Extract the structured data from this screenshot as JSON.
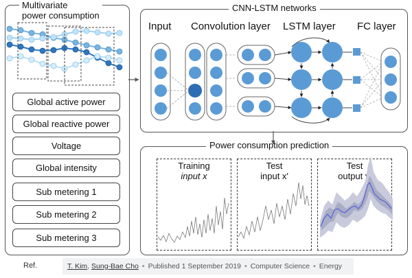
{
  "left_panel": {
    "title_line1": "Multivariate",
    "title_line2": "power consumption",
    "features": [
      "Global active power",
      "Global reactive power",
      "Voltage",
      "Global intensity",
      "Sub metering 1",
      "Sub metering 2",
      "Sub metering 3"
    ]
  },
  "network_panel": {
    "title": "CNN-LSTM networks",
    "layers": [
      "Input",
      "Convolution layer",
      "LSTM layer",
      "FC layer"
    ]
  },
  "prediction_panel": {
    "title": "Power consumption prediction",
    "training": {
      "line1": "Training",
      "line2": "input x"
    },
    "test_input": {
      "line1": "Test",
      "line2": "input x′"
    },
    "test_output": {
      "line1": "Test",
      "line2": "output y′"
    }
  },
  "footer": {
    "ref_label": "Ref.",
    "author1": "T. Kim",
    "author2": "Sung-Bae Cho",
    "published": "Published 1 September 2019",
    "field1": "Computer Science",
    "field2": "Energy"
  },
  "colors": {
    "node_blue": "#5b9bd5",
    "node_dark": "#2e6db4",
    "light_blue": "#aad4f0",
    "prediction_line": "#5560d8",
    "band": "#b9bccf"
  }
}
